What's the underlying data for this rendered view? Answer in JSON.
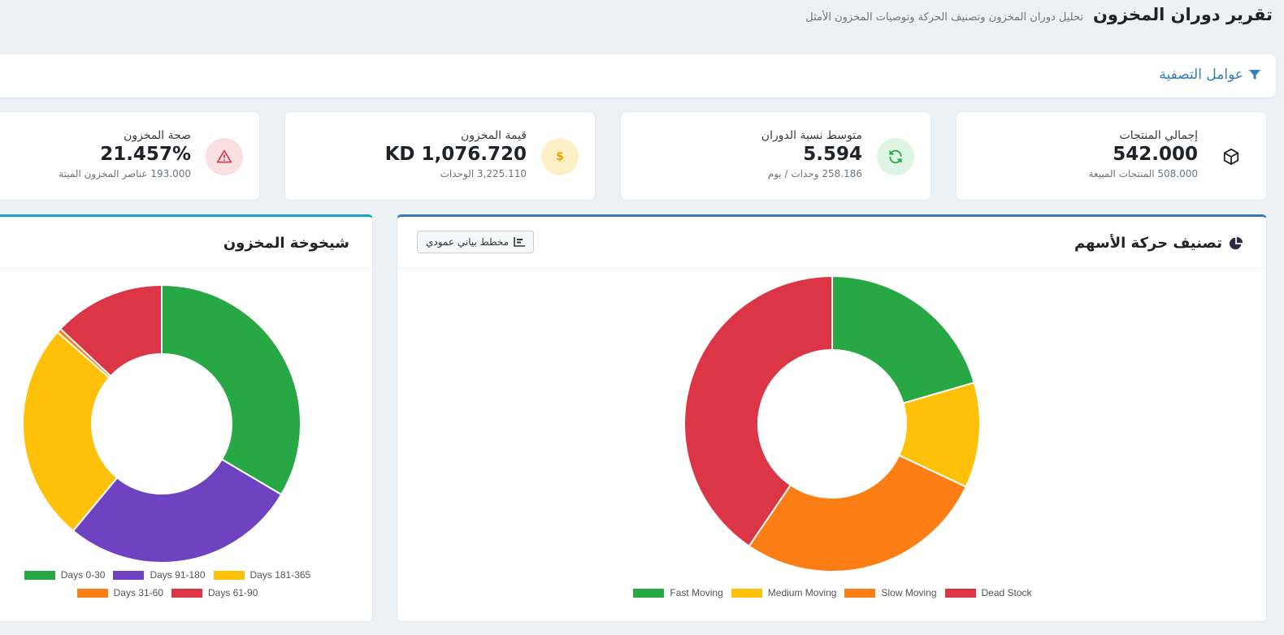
{
  "header": {
    "title": "تقرير دوران المخزون",
    "subtitle": "تحليل دوران المخزون وتصنيف الحركة وتوصيات المخزون الأمثل"
  },
  "filters": {
    "label": "عوامل التصفية"
  },
  "stats": [
    {
      "label": "إجمالي المنتجات",
      "value": "542.000",
      "sub": "508.000 المنتجات المبيعة",
      "icon": "box-icon",
      "color": "#212529"
    },
    {
      "label": "متوسط نسبة الدوران",
      "value": "5.594",
      "sub": "258.186 وحدات / يوم",
      "icon": "refresh-icon",
      "color": "#28a745"
    },
    {
      "label": "قيمة المخزون",
      "value": "KD 1,076.720",
      "sub": "3,225.110 الوحدات",
      "icon": "dollar-icon",
      "color": "#e0a800"
    },
    {
      "label": "صحة المخزون",
      "value": "21.457%",
      "sub": "193.000 عناصر المخزون الميتة",
      "icon": "warning-icon",
      "color": "#dc3545"
    }
  ],
  "stock_movement": {
    "title": "تصنيف حركة الأسهم",
    "button_label": "مخطط بياني عمودي"
  },
  "aging": {
    "title": "شيخوخة المخزون"
  },
  "chart_data": [
    {
      "type": "pie",
      "categories": [
        "Fast Moving",
        "Medium Moving",
        "Slow Moving",
        "Dead Stock"
      ],
      "values": [
        20.5,
        11.5,
        27.5,
        40.5
      ],
      "colors": [
        "#28a745",
        "#ffc107",
        "#fd7e14",
        "#dc3545"
      ],
      "legend": "bottom"
    },
    {
      "type": "pie",
      "categories": [
        "Days 0-30",
        "Days 91-180",
        "Days 181-365",
        "Days 31-60",
        "Days 61-90"
      ],
      "values": [
        33.5,
        27.5,
        25.5,
        0.5,
        13
      ],
      "colors": [
        "#28a745",
        "#6f42c1",
        "#ffc107",
        "#fd7e14",
        "#dc3545"
      ],
      "legend": "bottom"
    }
  ]
}
